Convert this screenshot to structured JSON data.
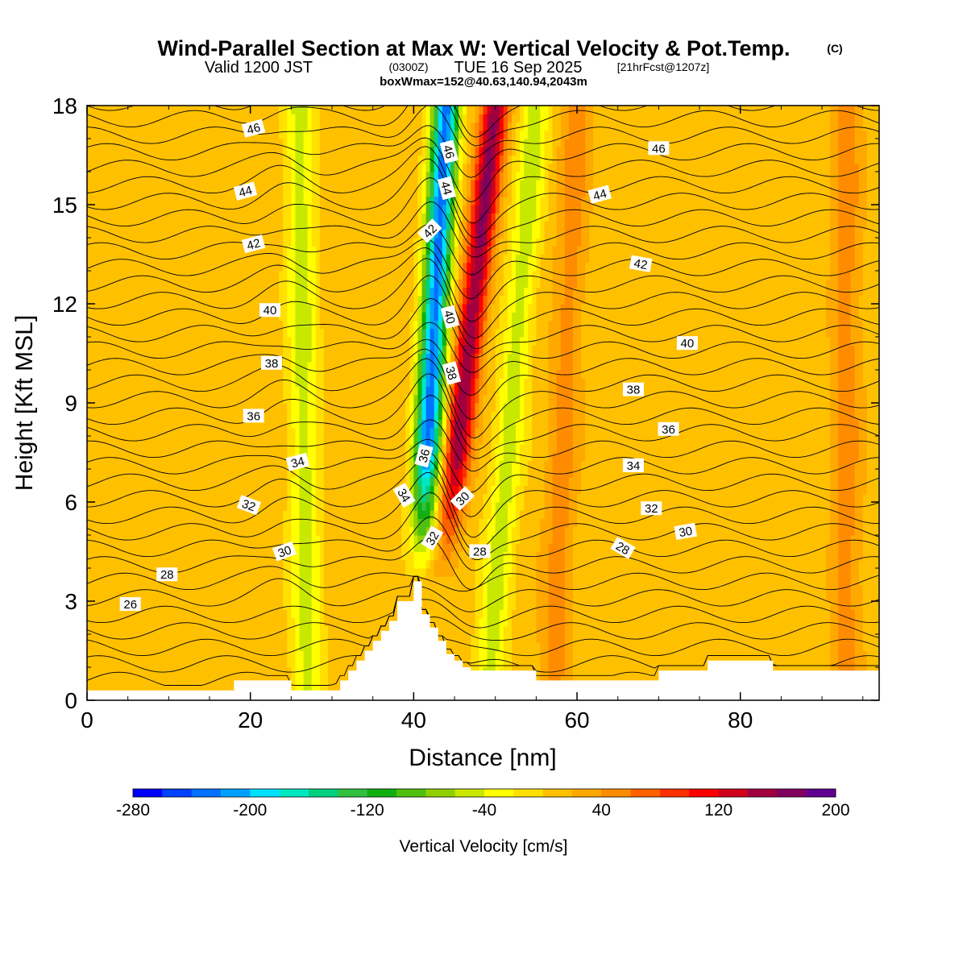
{
  "title": {
    "main": "Wind-Parallel Section at Max W: Vertical Velocity & Pot.Temp.",
    "copyright": "(C)",
    "valid_prefix": "Valid 1200 JST",
    "valid_utc": "(0300Z)",
    "valid_date": "TUE 16 Sep 2025",
    "forecast": "[21hrFcst@1207z]",
    "box": "boxWmax=152@40.63,140.94,2043m"
  },
  "colors": {
    "palette": [
      "#0000ff",
      "#0040ff",
      "#0070ff",
      "#00a0ff",
      "#00e0ff",
      "#00e8c0",
      "#00d080",
      "#30c040",
      "#10b010",
      "#50c010",
      "#90d000",
      "#c8e800",
      "#ffff00",
      "#ffe000",
      "#ffc000",
      "#ffa800",
      "#ff8c00",
      "#ff6000",
      "#ff3000",
      "#ff0000",
      "#d0001c",
      "#a00040",
      "#800060",
      "#600090"
    ],
    "contour": "#000000",
    "terrain": "#ffffff"
  },
  "chart_data": {
    "type": "heatmap",
    "title": "Wind-Parallel Section at Max W: Vertical Velocity & Pot.Temp.",
    "xlabel": "Distance [nm]",
    "ylabel": "Height [Kft MSL]",
    "xlim": [
      0,
      97
    ],
    "ylim": [
      0,
      18
    ],
    "xticks": [
      0,
      20,
      40,
      60,
      80
    ],
    "yticks": [
      0,
      3,
      6,
      9,
      12,
      15,
      18
    ],
    "colorbar": {
      "title": "Vertical Velocity [cm/s]",
      "min": -280,
      "max": 200,
      "step": 20,
      "tick_labels": [
        "-280",
        "-200",
        "-120",
        "-40",
        "40",
        "120",
        "200"
      ]
    },
    "vertical_velocity_features": [
      {
        "name": "strong updraft band",
        "x_at_top": 50,
        "x_at_bottom": 42,
        "peak_cm_s": 150,
        "sign": "up"
      },
      {
        "name": "strong downdraft band",
        "x_at_top": 44,
        "x_at_bottom": 40,
        "peak_cm_s": -240,
        "sign": "down"
      },
      {
        "name": "weak downdraft band",
        "x_at_top": 26,
        "x_at_bottom": 27,
        "peak_cm_s": -60,
        "sign": "down"
      },
      {
        "name": "weak downdraft band",
        "x_at_top": 55,
        "x_at_bottom": 49,
        "peak_cm_s": -60,
        "sign": "down"
      },
      {
        "name": "weak updraft band",
        "x_at_top": 60,
        "x_at_bottom": 57,
        "peak_cm_s": 40,
        "sign": "up"
      },
      {
        "name": "weak updraft band",
        "x_at_top": 93,
        "x_at_bottom": 93,
        "peak_cm_s": 40,
        "sign": "up"
      }
    ],
    "terrain_profile": [
      [
        0,
        0.3
      ],
      [
        18,
        0.3
      ],
      [
        18,
        0.6
      ],
      [
        25,
        0.6
      ],
      [
        25,
        0.3
      ],
      [
        31,
        0.3
      ],
      [
        31,
        0.6
      ],
      [
        32,
        0.6
      ],
      [
        32,
        0.9
      ],
      [
        33,
        0.9
      ],
      [
        33,
        1.2
      ],
      [
        34,
        1.2
      ],
      [
        34,
        1.5
      ],
      [
        35,
        1.5
      ],
      [
        35,
        1.8
      ],
      [
        36,
        1.8
      ],
      [
        36,
        2.1
      ],
      [
        37,
        2.1
      ],
      [
        37,
        2.4
      ],
      [
        38,
        2.4
      ],
      [
        38,
        3.0
      ],
      [
        40,
        3.0
      ],
      [
        40,
        3.6
      ],
      [
        41,
        3.6
      ],
      [
        41,
        2.6
      ],
      [
        42,
        2.6
      ],
      [
        42,
        2.2
      ],
      [
        43,
        2.2
      ],
      [
        43,
        1.8
      ],
      [
        44,
        1.8
      ],
      [
        44,
        1.4
      ],
      [
        45,
        1.4
      ],
      [
        45,
        1.2
      ],
      [
        46,
        1.2
      ],
      [
        46,
        1.0
      ],
      [
        47,
        1.0
      ],
      [
        47,
        0.9
      ],
      [
        55,
        0.9
      ],
      [
        55,
        0.6
      ],
      [
        70,
        0.6
      ],
      [
        70,
        0.9
      ],
      [
        76,
        0.9
      ],
      [
        76,
        1.2
      ],
      [
        84,
        1.2
      ],
      [
        84,
        0.9
      ],
      [
        97,
        0.9
      ]
    ],
    "theta_contours": [
      {
        "label": "26",
        "label_pos": [
          5.3,
          2.9
        ],
        "label_angle": 0
      },
      {
        "label": "28",
        "label_pos": [
          9.8,
          3.8
        ],
        "label_angle": 0
      },
      {
        "label": "30",
        "label_pos": [
          24.2,
          4.5
        ],
        "label_angle": -20
      },
      {
        "label": "32",
        "label_pos": [
          19.8,
          5.9
        ],
        "label_angle": 20
      },
      {
        "label": "34",
        "label_pos": [
          25.8,
          7.2
        ],
        "label_angle": -15
      },
      {
        "label": "36",
        "label_pos": [
          20.4,
          8.6
        ],
        "label_angle": 0
      },
      {
        "label": "38",
        "label_pos": [
          22.6,
          10.2
        ],
        "label_angle": 0
      },
      {
        "label": "40",
        "label_pos": [
          22.4,
          11.8
        ],
        "label_angle": 0
      },
      {
        "label": "42",
        "label_pos": [
          20.4,
          13.8
        ],
        "label_angle": -15
      },
      {
        "label": "44",
        "label_pos": [
          19.4,
          15.4
        ],
        "label_angle": -15
      },
      {
        "label": "46",
        "label_pos": [
          20.4,
          17.3
        ],
        "label_angle": -15
      },
      {
        "label": "46",
        "label_pos": [
          44.3,
          16.6
        ],
        "label_angle": 75
      },
      {
        "label": "44",
        "label_pos": [
          44.0,
          15.5
        ],
        "label_angle": 75
      },
      {
        "label": "42",
        "label_pos": [
          42.0,
          14.2
        ],
        "label_angle": -45
      },
      {
        "label": "40",
        "label_pos": [
          44.4,
          11.6
        ],
        "label_angle": 75
      },
      {
        "label": "38",
        "label_pos": [
          44.6,
          9.9
        ],
        "label_angle": 75
      },
      {
        "label": "36",
        "label_pos": [
          41.3,
          7.4
        ],
        "label_angle": -75
      },
      {
        "label": "34",
        "label_pos": [
          38.8,
          6.2
        ],
        "label_angle": 60
      },
      {
        "label": "32",
        "label_pos": [
          42.3,
          4.9
        ],
        "label_angle": -60
      },
      {
        "label": "30",
        "label_pos": [
          46.0,
          6.1
        ],
        "label_angle": -45
      },
      {
        "label": "28",
        "label_pos": [
          48.1,
          4.5
        ],
        "label_angle": 0
      },
      {
        "label": "46",
        "label_pos": [
          70.0,
          16.7
        ],
        "label_angle": 0
      },
      {
        "label": "44",
        "label_pos": [
          62.8,
          15.3
        ],
        "label_angle": -15
      },
      {
        "label": "42",
        "label_pos": [
          67.8,
          13.2
        ],
        "label_angle": 10
      },
      {
        "label": "40",
        "label_pos": [
          73.5,
          10.8
        ],
        "label_angle": 0
      },
      {
        "label": "38",
        "label_pos": [
          66.9,
          9.4
        ],
        "label_angle": 0
      },
      {
        "label": "36",
        "label_pos": [
          71.2,
          8.2
        ],
        "label_angle": 0
      },
      {
        "label": "34",
        "label_pos": [
          66.9,
          7.1
        ],
        "label_angle": 0
      },
      {
        "label": "32",
        "label_pos": [
          69.1,
          5.8
        ],
        "label_angle": 0
      },
      {
        "label": "30",
        "label_pos": [
          73.3,
          5.1
        ],
        "label_angle": -10
      },
      {
        "label": "28",
        "label_pos": [
          65.6,
          4.6
        ],
        "label_angle": 30
      }
    ]
  }
}
